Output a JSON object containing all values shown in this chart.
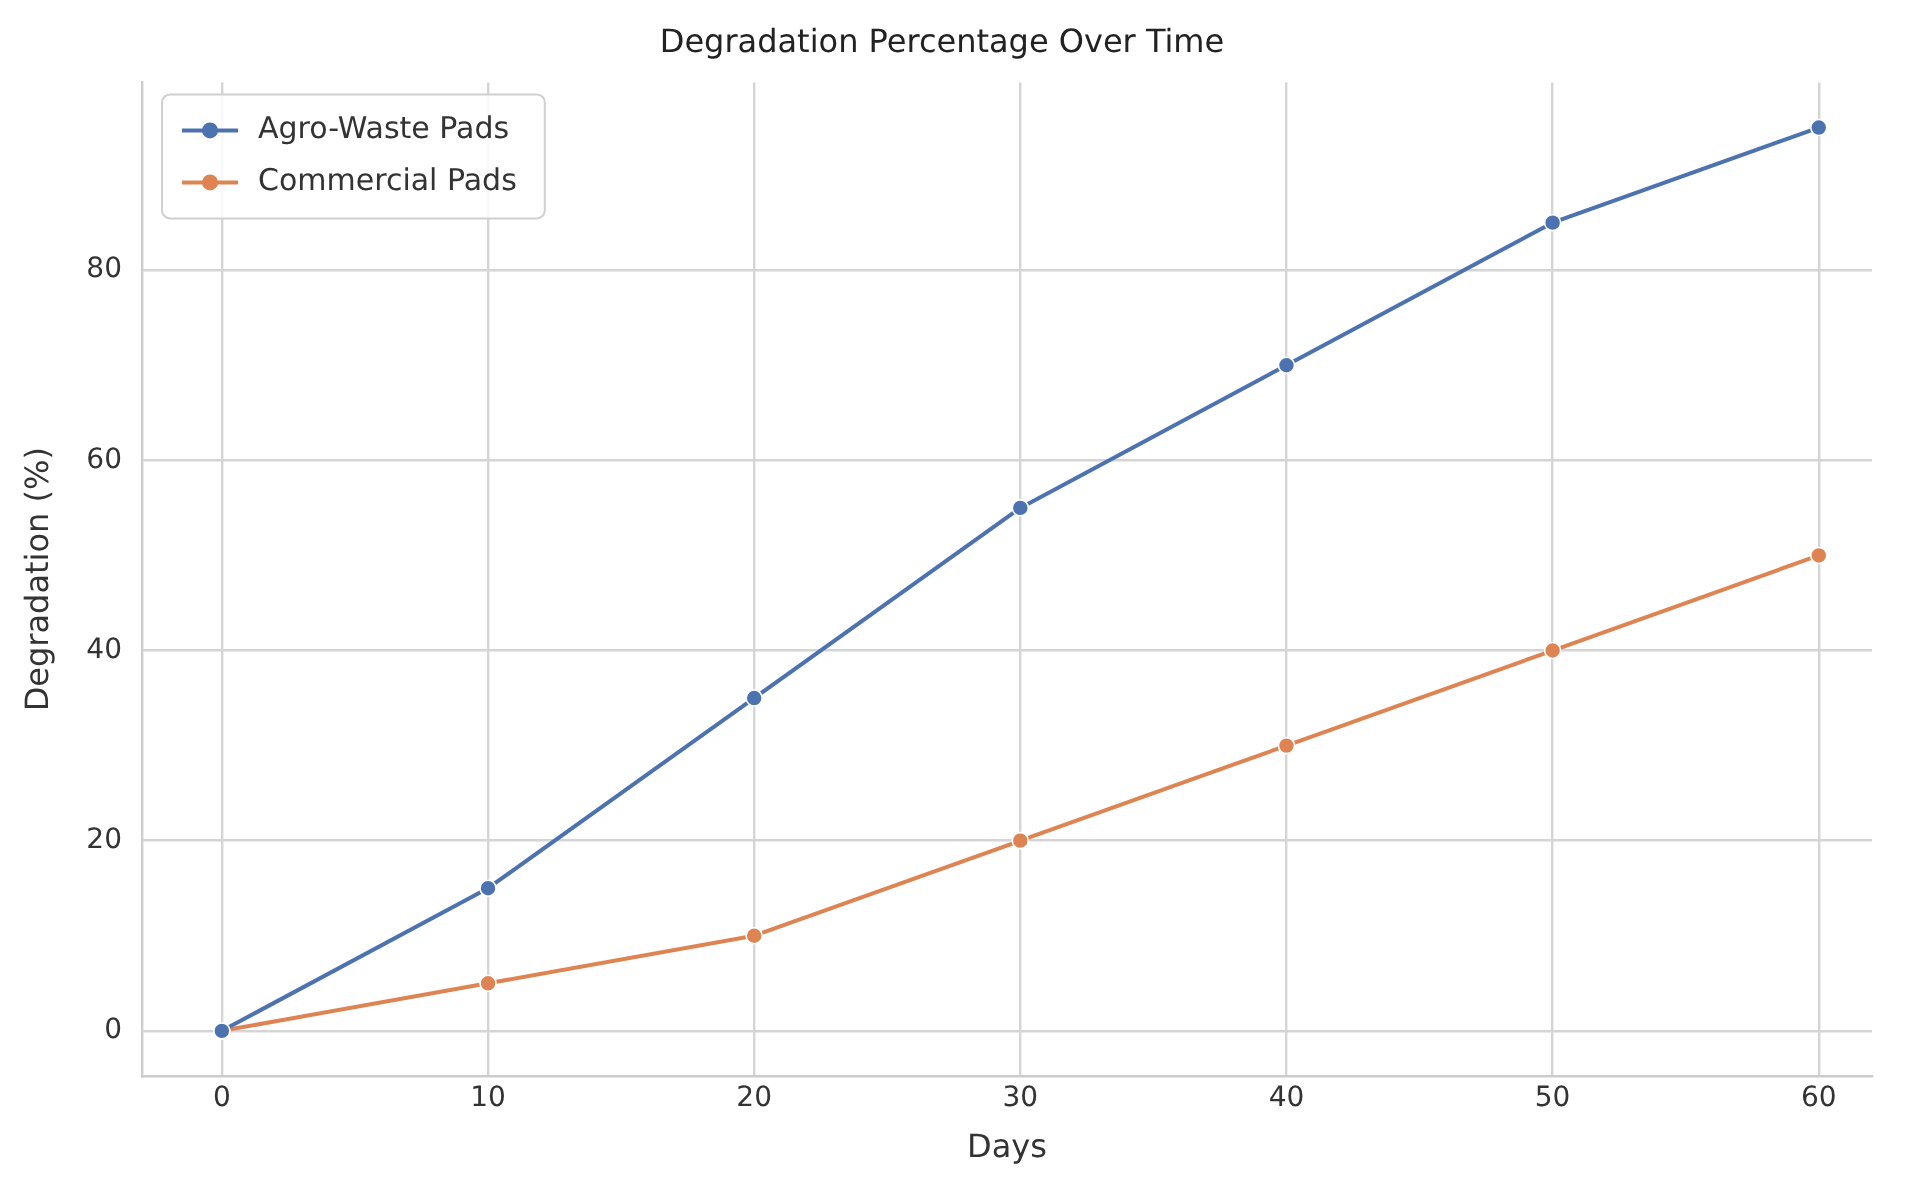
{
  "chart_data": {
    "type": "line",
    "title": "Degradation Percentage Over Time",
    "xlabel": "Days",
    "ylabel": "Degradation (%)",
    "x": [
      0,
      10,
      20,
      30,
      40,
      50,
      60
    ],
    "series": [
      {
        "name": "Agro-Waste Pads",
        "color": "#4c72b0",
        "values": [
          0,
          15,
          35,
          55,
          70,
          85,
          95
        ]
      },
      {
        "name": "Commercial Pads",
        "color": "#dd8452",
        "values": [
          0,
          5,
          10,
          20,
          30,
          40,
          50
        ]
      }
    ],
    "xlim": [
      -3,
      62
    ],
    "xticks": [
      0,
      10,
      20,
      30,
      40,
      50,
      60
    ],
    "ylim": [
      -4.75,
      99.75
    ],
    "yticks": [
      0,
      20,
      40,
      60,
      80
    ],
    "grid": true,
    "legend": "top left",
    "marker": "circle",
    "line_style": "solid"
  }
}
